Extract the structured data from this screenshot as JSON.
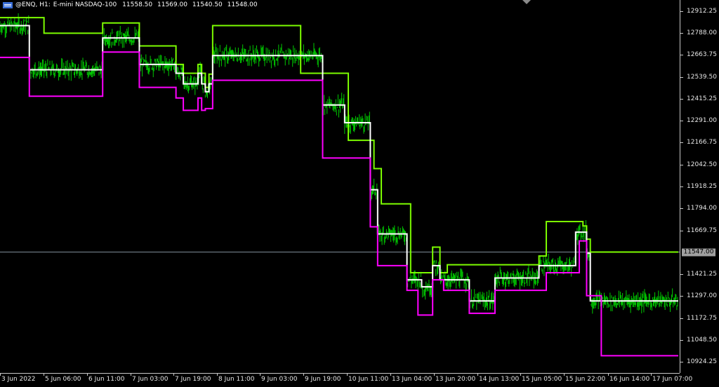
{
  "header": {
    "symbol_timeframe": "@ENQ, H1:",
    "instrument": "E-mini NASDAQ-100",
    "open": "11558.50",
    "high": "11569.00",
    "low": "11540.50",
    "close": "11548.00"
  },
  "current_price": "11547.00",
  "colors": {
    "background": "#000000",
    "candles": "#00c800",
    "upper_band": "#7cfc00",
    "middle_band": "#ffffff",
    "lower_band": "#ff00ff",
    "price_line": "#7f8c99"
  },
  "chart_data": {
    "type": "line",
    "title": "",
    "xlabel": "",
    "ylabel": "",
    "ylim": [
      10862,
      12975
    ],
    "y_ticks": [
      "12912.25",
      "12788.00",
      "12663.75",
      "12539.50",
      "12415.25",
      "12291.00",
      "12166.75",
      "12042.50",
      "11918.25",
      "11794.00",
      "11669.75",
      "11547.00",
      "11421.25",
      "11297.00",
      "11172.75",
      "11048.50",
      "10924.25"
    ],
    "x_ticks": [
      "3 Jun 2022",
      "5 Jun 06:00",
      "6 Jun 11:00",
      "7 Jun 03:00",
      "7 Jun 19:00",
      "8 Jun 11:00",
      "9 Jun 03:00",
      "9 Jun 19:00",
      "10 Jun 11:00",
      "13 Jun 04:00",
      "13 Jun 20:00",
      "14 Jun 13:00",
      "15 Jun 05:00",
      "15 Jun 22:00",
      "16 Jun 14:00",
      "17 Jun 07:00"
    ],
    "x": [
      0,
      6,
      8,
      12,
      23,
      27,
      28,
      29,
      37,
      38,
      45,
      46,
      47,
      48,
      49,
      50,
      54,
      55,
      56,
      57,
      58,
      59,
      60,
      61,
      62,
      80,
      81,
      82,
      88,
      94,
      95,
      101,
      102,
      103,
      104,
      106,
      107,
      109,
      110,
      111,
      112,
      114,
      115,
      117,
      118,
      119,
      120,
      121,
      122,
      128,
      130,
      131,
      135,
      136,
      141,
      147,
      148,
      149,
      156,
      157,
      158,
      159,
      160,
      161,
      164,
      180,
      185
    ],
    "series": [
      {
        "values": [
          12875,
          12875,
          12875,
          12787,
          12787,
          12787,
          12845,
          12845,
          12845,
          12715,
          12715,
          12715,
          12715,
          12610,
          12610,
          12560,
          12610,
          12560,
          12480,
          12555,
          12830,
          12830,
          12830,
          12830,
          12830,
          12830,
          12830,
          12560,
          12560,
          12560,
          12180,
          12180,
          12020,
          12020,
          11820,
          11820,
          11820,
          11820,
          11820,
          11820,
          11430,
          11430,
          11430,
          11430,
          11575,
          11575,
          11430,
          11430,
          11475,
          11475,
          11475,
          11475,
          11475,
          11475,
          11475,
          11525,
          11525,
          11720,
          11720,
          11720,
          11720,
          11695,
          11620,
          11547,
          11547,
          11547,
          11547
        ]
      },
      {
        "values": [
          12830,
          12830,
          12580,
          12580,
          12580,
          12580,
          12760,
          12760,
          12760,
          12610,
          12610,
          12610,
          12610,
          12560,
          12560,
          12500,
          12560,
          12500,
          12455,
          12500,
          12660,
          12660,
          12660,
          12660,
          12660,
          12660,
          12660,
          12660,
          12380,
          12280,
          12280,
          11900,
          11900,
          11650,
          11650,
          11650,
          11650,
          11650,
          11650,
          11390,
          11390,
          11390,
          11350,
          11350,
          11470,
          11470,
          11390,
          11390,
          11390,
          11270,
          11270,
          11270,
          11400,
          11400,
          11400,
          11470,
          11470,
          11470,
          11470,
          11660,
          11660,
          11660,
          11540,
          11270,
          11270,
          11270,
          11270
        ]
      },
      {
        "values": [
          12650,
          12650,
          12430,
          12430,
          12430,
          12430,
          12680,
          12680,
          12680,
          12480,
          12480,
          12480,
          12480,
          12420,
          12420,
          12350,
          12420,
          12350,
          12360,
          12360,
          12520,
          12520,
          12520,
          12520,
          12520,
          12520,
          12520,
          12520,
          12080,
          12080,
          12080,
          11690,
          11690,
          11470,
          11470,
          11470,
          11470,
          11470,
          11470,
          11330,
          11330,
          11190,
          11190,
          11190,
          11390,
          11390,
          11390,
          11330,
          11330,
          11200,
          11200,
          11200,
          11330,
          11330,
          11330,
          11330,
          11330,
          11430,
          11430,
          11430,
          11610,
          11610,
          11300,
          11300,
          10960,
          10960,
          10960
        ]
      }
    ]
  }
}
